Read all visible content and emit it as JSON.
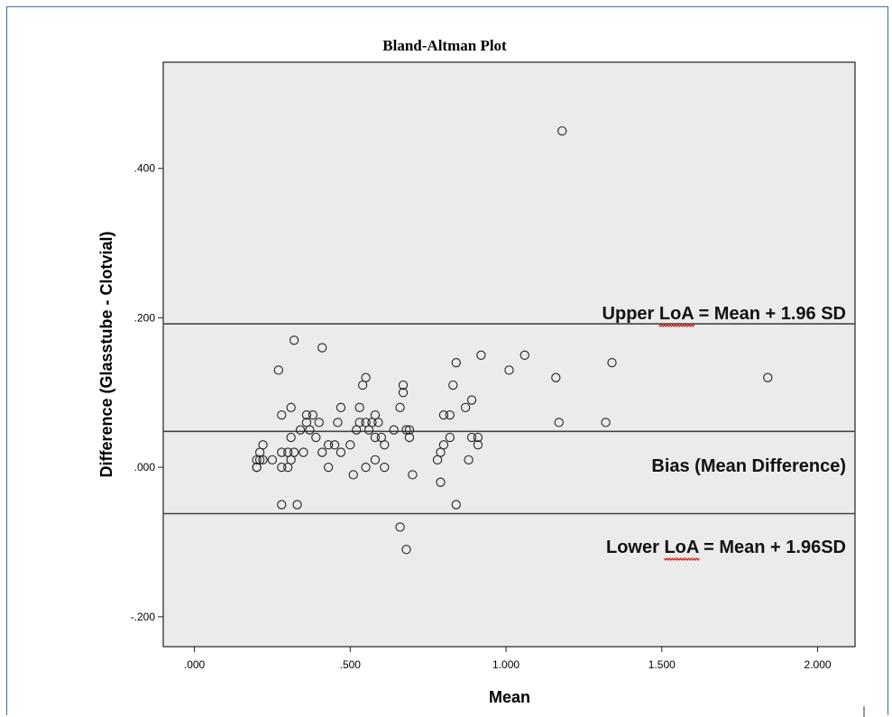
{
  "chart_data": {
    "type": "scatter",
    "title": "Bland-Altman Plot",
    "xlabel": "Mean",
    "ylabel": "Difference (Glasstube - Clotvial)",
    "xlim": [
      -0.1,
      2.12
    ],
    "ylim": [
      -0.24,
      0.542
    ],
    "xticks": [
      0.0,
      0.5,
      1.0,
      1.5,
      2.0
    ],
    "xtick_labels": [
      ".000",
      ".500",
      "1.000",
      "1.500",
      "2.000"
    ],
    "yticks": [
      -0.2,
      0.0,
      0.2,
      0.4
    ],
    "ytick_labels": [
      "-.200",
      ".000",
      ".200",
      ".400"
    ],
    "grid": false,
    "plot_background": "#ebebeb",
    "reference_lines": [
      {
        "name": "upper",
        "y": 0.192,
        "label_lines": [
          "Upper ",
          "LoA",
          " = Mean + 1.96 SD"
        ]
      },
      {
        "name": "bias",
        "y": 0.048,
        "label_lines": [
          "Bias (Mean Difference)"
        ]
      },
      {
        "name": "lower",
        "y": -0.062,
        "label_lines": [
          "Lower ",
          "LoA",
          " = Mean + 1.96SD"
        ]
      }
    ],
    "points": [
      [
        1.18,
        0.45
      ],
      [
        0.32,
        0.17
      ],
      [
        0.41,
        0.16
      ],
      [
        0.27,
        0.13
      ],
      [
        0.55,
        0.12
      ],
      [
        0.54,
        0.11
      ],
      [
        0.67,
        0.11
      ],
      [
        0.67,
        0.1
      ],
      [
        0.84,
        0.14
      ],
      [
        0.83,
        0.11
      ],
      [
        0.92,
        0.15
      ],
      [
        1.01,
        0.13
      ],
      [
        1.06,
        0.15
      ],
      [
        1.16,
        0.12
      ],
      [
        1.34,
        0.14
      ],
      [
        1.84,
        0.12
      ],
      [
        0.31,
        0.08
      ],
      [
        0.28,
        0.07
      ],
      [
        0.36,
        0.07
      ],
      [
        0.38,
        0.07
      ],
      [
        0.36,
        0.06
      ],
      [
        0.4,
        0.06
      ],
      [
        0.47,
        0.08
      ],
      [
        0.46,
        0.06
      ],
      [
        0.53,
        0.08
      ],
      [
        0.53,
        0.06
      ],
      [
        0.55,
        0.06
      ],
      [
        0.57,
        0.06
      ],
      [
        0.58,
        0.07
      ],
      [
        0.59,
        0.06
      ],
      [
        0.66,
        0.08
      ],
      [
        0.89,
        0.09
      ],
      [
        0.87,
        0.08
      ],
      [
        0.8,
        0.07
      ],
      [
        0.82,
        0.07
      ],
      [
        1.17,
        0.06
      ],
      [
        1.32,
        0.06
      ],
      [
        0.34,
        0.05
      ],
      [
        0.37,
        0.05
      ],
      [
        0.39,
        0.04
      ],
      [
        0.52,
        0.05
      ],
      [
        0.56,
        0.05
      ],
      [
        0.58,
        0.04
      ],
      [
        0.6,
        0.04
      ],
      [
        0.64,
        0.05
      ],
      [
        0.68,
        0.05
      ],
      [
        0.69,
        0.05
      ],
      [
        0.69,
        0.04
      ],
      [
        0.82,
        0.04
      ],
      [
        0.89,
        0.04
      ],
      [
        0.91,
        0.04
      ],
      [
        0.91,
        0.03
      ],
      [
        0.22,
        0.03
      ],
      [
        0.35,
        0.02
      ],
      [
        0.41,
        0.02
      ],
      [
        0.43,
        0.03
      ],
      [
        0.45,
        0.03
      ],
      [
        0.47,
        0.02
      ],
      [
        0.5,
        0.03
      ],
      [
        0.61,
        0.03
      ],
      [
        0.79,
        0.02
      ],
      [
        0.8,
        0.03
      ],
      [
        0.28,
        0.02
      ],
      [
        0.3,
        0.02
      ],
      [
        0.32,
        0.02
      ],
      [
        0.31,
        0.04
      ],
      [
        0.21,
        0.02
      ],
      [
        0.2,
        0.01
      ],
      [
        0.21,
        0.01
      ],
      [
        0.22,
        0.01
      ],
      [
        0.25,
        0.01
      ],
      [
        0.31,
        0.01
      ],
      [
        0.58,
        0.01
      ],
      [
        0.78,
        0.01
      ],
      [
        0.88,
        0.01
      ],
      [
        0.2,
        0.0
      ],
      [
        0.2,
        0.0
      ],
      [
        0.28,
        0.0
      ],
      [
        0.3,
        0.0
      ],
      [
        0.43,
        0.0
      ],
      [
        0.55,
        0.0
      ],
      [
        0.61,
        0.0
      ],
      [
        0.51,
        -0.01
      ],
      [
        0.7,
        -0.01
      ],
      [
        0.79,
        -0.02
      ],
      [
        0.28,
        -0.05
      ],
      [
        0.33,
        -0.05
      ],
      [
        0.84,
        -0.05
      ],
      [
        0.66,
        -0.08
      ],
      [
        0.68,
        -0.11
      ]
    ]
  }
}
